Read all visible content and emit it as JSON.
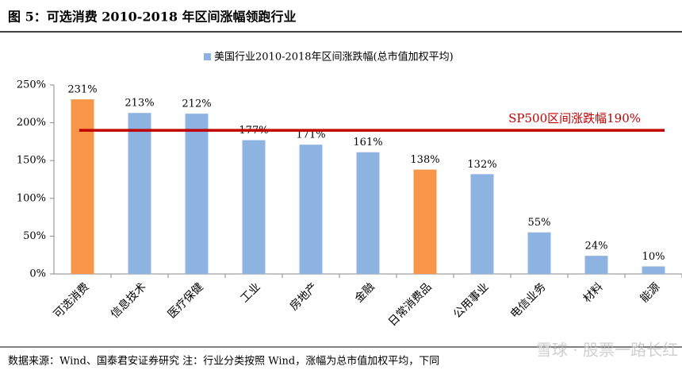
{
  "chart_data": {
    "type": "bar",
    "title": "图 5：可选消费 2010-2018 年区间涨幅领跑行业",
    "categories": [
      "可选消费",
      "信息技术",
      "医疗保健",
      "工业",
      "房地产",
      "金融",
      "日常消费品",
      "公用事业",
      "电信业务",
      "材料",
      "能源"
    ],
    "series": [
      {
        "name": "美国行业2010-2018年区间涨跌幅(总市值加权平均)",
        "color": "#8db3e2",
        "values": [
          231,
          213,
          212,
          177,
          171,
          161,
          138,
          132,
          55,
          24,
          10
        ],
        "value_labels": [
          "231%",
          "213%",
          "212%",
          "177%",
          "171%",
          "161%",
          "138%",
          "132%",
          "55%",
          "24%",
          "10%"
        ],
        "colors": [
          "#f79646",
          "#8db3e2",
          "#8db3e2",
          "#8db3e2",
          "#8db3e2",
          "#8db3e2",
          "#f79646",
          "#8db3e2",
          "#8db3e2",
          "#8db3e2",
          "#8db3e2"
        ]
      }
    ],
    "ylim": [
      0,
      250
    ],
    "yticks": [
      {
        "value": 0,
        "label": "0%"
      },
      {
        "value": 50,
        "label": "50%"
      },
      {
        "value": 100,
        "label": "100%"
      },
      {
        "value": 150,
        "label": "150%"
      },
      {
        "value": 200,
        "label": "200%"
      },
      {
        "value": 250,
        "label": "250%"
      }
    ],
    "reference_line": {
      "value": 190,
      "label": "SP500区间涨跌幅190%",
      "color": "#c00000"
    },
    "source": "数据来源：Wind、国泰君安证券研究  注：行业分类按照 Wind，涨幅为总市值加权平均，下同",
    "watermark": "雪球 · 股票一路长红"
  }
}
